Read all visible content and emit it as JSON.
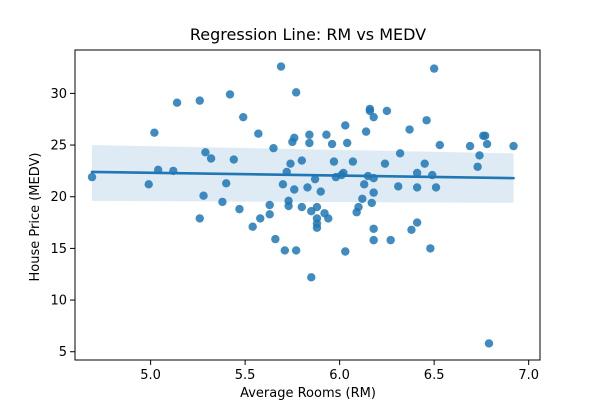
{
  "chart_data": {
    "type": "scatter",
    "title": "Regression Line: RM vs MEDV",
    "xlabel": "Average Rooms (RM)",
    "ylabel": "House Price (MEDV)",
    "xlim": [
      4.6,
      7.06
    ],
    "ylim": [
      4.2,
      34.2
    ],
    "xticks": [
      5.0,
      5.5,
      6.0,
      6.5,
      7.0
    ],
    "xtick_labels": [
      "5.0",
      "5.5",
      "6.0",
      "6.5",
      "7.0"
    ],
    "yticks": [
      5,
      10,
      15,
      20,
      25,
      30
    ],
    "ytick_labels": [
      "5",
      "10",
      "15",
      "20",
      "25",
      "30"
    ],
    "grid": false,
    "colors": {
      "points": "#1f77b4",
      "line": "#1f77b4",
      "band": "#1f77b4"
    },
    "series": [
      {
        "points": [
          [
            4.69,
            21.9
          ],
          [
            4.99,
            21.2
          ],
          [
            5.02,
            26.2
          ],
          [
            5.04,
            22.6
          ],
          [
            5.12,
            22.5
          ],
          [
            5.14,
            29.1
          ],
          [
            5.26,
            29.3
          ],
          [
            5.26,
            17.9
          ],
          [
            5.28,
            20.1
          ],
          [
            5.29,
            24.3
          ],
          [
            5.32,
            23.7
          ],
          [
            5.38,
            19.5
          ],
          [
            5.4,
            21.3
          ],
          [
            5.42,
            29.9
          ],
          [
            5.44,
            23.6
          ],
          [
            5.47,
            18.8
          ],
          [
            5.49,
            27.7
          ],
          [
            5.54,
            17.1
          ],
          [
            5.57,
            26.1
          ],
          [
            5.58,
            17.9
          ],
          [
            5.63,
            18.3
          ],
          [
            5.63,
            19.2
          ],
          [
            5.65,
            24.7
          ],
          [
            5.66,
            15.9
          ],
          [
            5.69,
            32.6
          ],
          [
            5.7,
            21.2
          ],
          [
            5.71,
            14.8
          ],
          [
            5.72,
            22.4
          ],
          [
            5.73,
            19.6
          ],
          [
            5.73,
            19.1
          ],
          [
            5.74,
            23.2
          ],
          [
            5.75,
            25.3
          ],
          [
            5.76,
            20.7
          ],
          [
            5.76,
            25.7
          ],
          [
            5.77,
            30.1
          ],
          [
            5.77,
            14.8
          ],
          [
            5.8,
            23.5
          ],
          [
            5.8,
            19.0
          ],
          [
            5.83,
            20.9
          ],
          [
            5.84,
            26.0
          ],
          [
            5.84,
            25.2
          ],
          [
            5.85,
            18.6
          ],
          [
            5.85,
            12.2
          ],
          [
            5.87,
            21.7
          ],
          [
            5.88,
            17.0
          ],
          [
            5.88,
            17.4
          ],
          [
            5.88,
            17.9
          ],
          [
            5.88,
            19.0
          ],
          [
            5.9,
            20.5
          ],
          [
            5.92,
            18.4
          ],
          [
            5.93,
            26.0
          ],
          [
            5.94,
            17.9
          ],
          [
            5.96,
            25.1
          ],
          [
            5.97,
            23.4
          ],
          [
            5.98,
            21.9
          ],
          [
            6.01,
            22.1
          ],
          [
            6.02,
            22.3
          ],
          [
            6.03,
            26.9
          ],
          [
            6.03,
            14.7
          ],
          [
            6.04,
            25.2
          ],
          [
            6.07,
            23.4
          ],
          [
            6.09,
            18.5
          ],
          [
            6.1,
            19.0
          ],
          [
            6.12,
            19.8
          ],
          [
            6.13,
            21.2
          ],
          [
            6.14,
            26.3
          ],
          [
            6.15,
            22.0
          ],
          [
            6.16,
            28.5
          ],
          [
            6.16,
            28.3
          ],
          [
            6.17,
            19.4
          ],
          [
            6.18,
            27.7
          ],
          [
            6.18,
            21.8
          ],
          [
            6.18,
            20.4
          ],
          [
            6.18,
            16.9
          ],
          [
            6.18,
            15.8
          ],
          [
            6.24,
            23.2
          ],
          [
            6.25,
            28.3
          ],
          [
            6.27,
            15.8
          ],
          [
            6.31,
            21.0
          ],
          [
            6.32,
            24.2
          ],
          [
            6.37,
            26.5
          ],
          [
            6.38,
            16.8
          ],
          [
            6.41,
            17.5
          ],
          [
            6.41,
            20.9
          ],
          [
            6.41,
            22.3
          ],
          [
            6.45,
            23.2
          ],
          [
            6.46,
            27.4
          ],
          [
            6.48,
            15.0
          ],
          [
            6.49,
            22.1
          ],
          [
            6.5,
            32.4
          ],
          [
            6.51,
            20.9
          ],
          [
            6.53,
            25.0
          ],
          [
            6.69,
            24.9
          ],
          [
            6.73,
            22.9
          ],
          [
            6.74,
            24.0
          ],
          [
            6.76,
            25.9
          ],
          [
            6.77,
            25.9
          ],
          [
            6.78,
            25.1
          ],
          [
            6.79,
            5.8
          ],
          [
            6.92,
            24.9
          ]
        ]
      }
    ],
    "regression": {
      "x": [
        4.69,
        6.92
      ],
      "y": [
        22.4,
        21.8
      ],
      "ci_lower": [
        19.6,
        19.4
      ],
      "ci_upper": [
        25.0,
        24.2
      ]
    }
  }
}
